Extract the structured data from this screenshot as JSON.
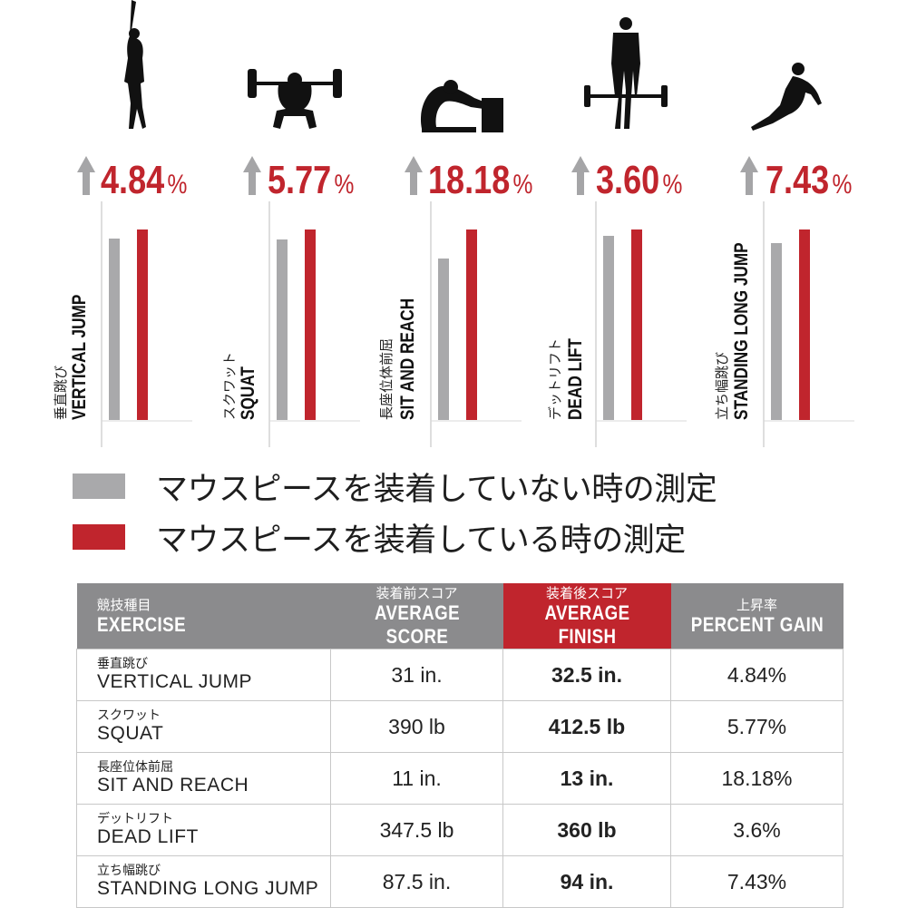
{
  "colors": {
    "before": "#a9a9ab",
    "after": "#c0252d",
    "arrow": "#a5a5a7",
    "header": "#8b8b8d"
  },
  "legend": {
    "before_label": "マウスピースを装着していない時の測定",
    "after_label": "マウスピースを装着している時の測定"
  },
  "table": {
    "headers": [
      {
        "jp": "競技種目",
        "en": "EXERCISE"
      },
      {
        "jp": "装着前スコア",
        "en": "AVERAGE SCORE"
      },
      {
        "jp": "装着後スコア",
        "en": "AVERAGE FINISH"
      },
      {
        "jp": "上昇率",
        "en": "PERCENT GAIN"
      }
    ],
    "rows": [
      {
        "jp": "垂直跳び",
        "en": "VERTICAL JUMP",
        "before": "31 in.",
        "after": "32.5 in.",
        "gain": "4.84%"
      },
      {
        "jp": "スクワット",
        "en": "SQUAT",
        "before": "390 lb",
        "after": "412.5 lb",
        "gain": "5.77%"
      },
      {
        "jp": "長座位体前屈",
        "en": "SIT AND REACH",
        "before": "11 in.",
        "after": "13 in.",
        "gain": "18.18%"
      },
      {
        "jp": "デットリフト",
        "en": "DEAD LIFT",
        "before": "347.5 lb",
        "after": "360 lb",
        "gain": "3.6%"
      },
      {
        "jp": "立ち幅跳び",
        "en": "STANDING LONG JUMP",
        "before": "87.5 in.",
        "after": "94 in.",
        "gain": "7.43%"
      }
    ]
  },
  "chart_data": [
    {
      "type": "bar",
      "icon": "vertical-jump-icon",
      "gain_value": "4.84",
      "gain_unit": "%",
      "label_jp": "垂直跳び",
      "label_en": "VERTICAL JUMP",
      "categories": [
        "before",
        "after"
      ],
      "values": [
        31,
        32.5
      ]
    },
    {
      "type": "bar",
      "icon": "squat-icon",
      "gain_value": "5.77",
      "gain_unit": "%",
      "label_jp": "スクワット",
      "label_en": "SQUAT",
      "categories": [
        "before",
        "after"
      ],
      "values": [
        390,
        412.5
      ]
    },
    {
      "type": "bar",
      "icon": "sit-and-reach-icon",
      "gain_value": "18.18",
      "gain_unit": "%",
      "label_jp": "長座位体前屈",
      "label_en": "SIT AND REACH",
      "categories": [
        "before",
        "after"
      ],
      "values": [
        11,
        13
      ]
    },
    {
      "type": "bar",
      "icon": "dead-lift-icon",
      "gain_value": "3.60",
      "gain_unit": "%",
      "label_jp": "デットリフト",
      "label_en": "DEAD LIFT",
      "categories": [
        "before",
        "after"
      ],
      "values": [
        347.5,
        360
      ]
    },
    {
      "type": "bar",
      "icon": "standing-long-jump-icon",
      "gain_value": "7.43",
      "gain_unit": "%",
      "label_jp": "立ち幅跳び",
      "label_en": "STANDING LONG JUMP",
      "categories": [
        "before",
        "after"
      ],
      "values": [
        87.5,
        94
      ]
    }
  ]
}
